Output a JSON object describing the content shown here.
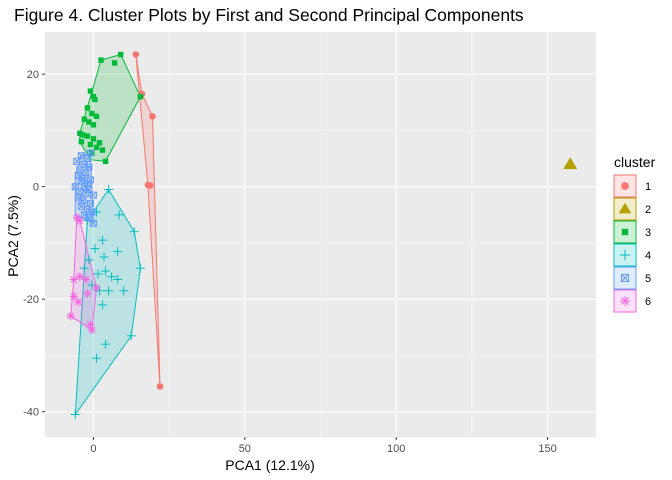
{
  "chart_data": {
    "type": "scatter",
    "title": "Figure 4. Cluster Plots by First and Second Principal Components",
    "xlabel": "PCA1 (12.1%)",
    "ylabel": "PCA2 (7.5%)",
    "xlim": [
      -16,
      166
    ],
    "ylim": [
      -44.5,
      27.5
    ],
    "x_ticks": [
      0,
      50,
      100,
      150
    ],
    "y_ticks": [
      -40,
      -20,
      0,
      20
    ],
    "grid": true,
    "legend": {
      "title": "cluster",
      "position": "right"
    },
    "series": [
      {
        "name": "1",
        "color": "#F8766D",
        "shape": "circle",
        "points": [
          [
            14,
            23.5
          ],
          [
            16,
            16.5
          ],
          [
            19.5,
            12.5
          ],
          [
            18,
            0.3
          ],
          [
            18.8,
            0.2
          ],
          [
            22,
            -35.5
          ]
        ],
        "hull": [
          [
            14,
            23.5
          ],
          [
            16,
            16.5
          ],
          [
            19.5,
            12.5
          ],
          [
            22,
            -35.5
          ],
          [
            18,
            0.3
          ]
        ]
      },
      {
        "name": "2",
        "color": "#B79F00",
        "shape": "triangle",
        "points": [
          [
            157.5,
            4
          ]
        ],
        "hull": []
      },
      {
        "name": "3",
        "color": "#00BA38",
        "shape": "square",
        "points": [
          [
            9,
            23.5
          ],
          [
            2.5,
            22.5
          ],
          [
            7,
            22
          ],
          [
            15.5,
            16
          ],
          [
            -1,
            17
          ],
          [
            0,
            16
          ],
          [
            0.5,
            15.5
          ],
          [
            -2,
            14
          ],
          [
            -0.5,
            13
          ],
          [
            1,
            12.5
          ],
          [
            -3,
            12
          ],
          [
            -1.5,
            11.5
          ],
          [
            0,
            11
          ],
          [
            -4.5,
            9.5
          ],
          [
            -3.5,
            9.2
          ],
          [
            -2,
            9
          ],
          [
            0,
            8.5
          ],
          [
            -4,
            8
          ],
          [
            -1,
            7.5
          ],
          [
            1,
            7
          ],
          [
            2,
            7.8
          ],
          [
            -0.5,
            6
          ],
          [
            3,
            6.5
          ],
          [
            4,
            4.5
          ]
        ],
        "hull": [
          [
            9,
            23.5
          ],
          [
            15.5,
            16
          ],
          [
            4,
            4.5
          ],
          [
            -1,
            4.8
          ],
          [
            -4.5,
            8
          ],
          [
            -4.5,
            9.5
          ],
          [
            2.5,
            22.5
          ]
        ]
      },
      {
        "name": "4",
        "color": "#00BFC4",
        "shape": "plus",
        "points": [
          [
            5,
            -0.5
          ],
          [
            1,
            -4.5
          ],
          [
            8.5,
            -5
          ],
          [
            -2,
            -6
          ],
          [
            3,
            -9.5
          ],
          [
            13.5,
            -8
          ],
          [
            0.5,
            -11
          ],
          [
            8,
            -11.5
          ],
          [
            -1.5,
            -13
          ],
          [
            3.5,
            -12.5
          ],
          [
            -3,
            -14.5
          ],
          [
            15.5,
            -14.5
          ],
          [
            1.5,
            -15.5
          ],
          [
            4,
            -15
          ],
          [
            6,
            -16
          ],
          [
            8,
            -16.5
          ],
          [
            -0.5,
            -17.5
          ],
          [
            2,
            -18.5
          ],
          [
            5,
            -18.5
          ],
          [
            10,
            -18.5
          ],
          [
            3,
            -21
          ],
          [
            12.5,
            -26.5
          ],
          [
            4,
            -28
          ],
          [
            1,
            -30.5
          ],
          [
            -6,
            -40.5
          ]
        ],
        "hull": [
          [
            5,
            -0.5
          ],
          [
            13.5,
            -8
          ],
          [
            15.5,
            -14.5
          ],
          [
            12.5,
            -26.5
          ],
          [
            -6,
            -40.5
          ],
          [
            -3,
            -14.5
          ],
          [
            -2,
            -6
          ]
        ]
      },
      {
        "name": "5",
        "color": "#619CFF",
        "shape": "square-cross",
        "points": [
          [
            -1,
            6
          ],
          [
            -4,
            5.5
          ],
          [
            -2,
            5
          ],
          [
            -5.5,
            4.5
          ],
          [
            -3,
            4
          ],
          [
            -1.5,
            3.5
          ],
          [
            -4.5,
            3
          ],
          [
            -2.5,
            2.5
          ],
          [
            -5,
            2
          ],
          [
            -3.5,
            1.5
          ],
          [
            -1,
            1.2
          ],
          [
            -4,
            1
          ],
          [
            -2,
            0.5
          ],
          [
            -6,
            0
          ],
          [
            -3,
            0
          ],
          [
            -1.5,
            -0.5
          ],
          [
            -4.5,
            -0.8
          ],
          [
            -2.5,
            -1.2
          ],
          [
            0,
            -1.5
          ],
          [
            -5,
            -2
          ],
          [
            -3.5,
            -2.5
          ],
          [
            -1,
            -3
          ],
          [
            -4,
            -3.5
          ],
          [
            -2,
            -4
          ],
          [
            -0.5,
            -4.5
          ],
          [
            -3,
            -5
          ],
          [
            -1.5,
            -5.5
          ],
          [
            0,
            -6.5
          ]
        ],
        "hull": [
          [
            -1,
            6
          ],
          [
            0,
            -6.5
          ],
          [
            -6,
            -5
          ],
          [
            -6,
            2
          ],
          [
            -4,
            5.5
          ]
        ]
      },
      {
        "name": "6",
        "color": "#F564E3",
        "shape": "star",
        "points": [
          [
            -5.5,
            -5.5
          ],
          [
            -4.5,
            -6
          ],
          [
            -6.5,
            -16.5
          ],
          [
            -4.5,
            -16
          ],
          [
            -2.5,
            -16.5
          ],
          [
            1,
            -18
          ],
          [
            -2,
            -19
          ],
          [
            -6.5,
            -19.5
          ],
          [
            -5,
            -20.5
          ],
          [
            -7.5,
            -23
          ],
          [
            -1,
            -24.5
          ],
          [
            -0.5,
            -25.5
          ]
        ],
        "hull": [
          [
            -4.5,
            -6
          ],
          [
            1,
            -18
          ],
          [
            -0.5,
            -25.5
          ],
          [
            -7.5,
            -23
          ],
          [
            -6.5,
            -16.5
          ],
          [
            -5.5,
            -5.5
          ]
        ]
      }
    ]
  }
}
